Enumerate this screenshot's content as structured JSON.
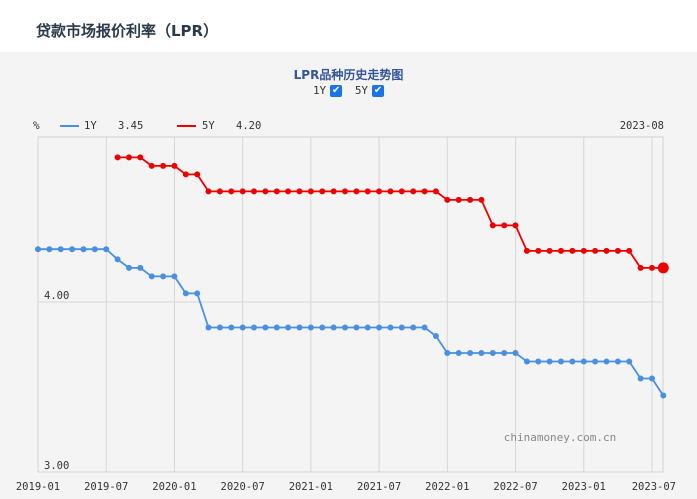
{
  "page": {
    "title": "贷款市场报价利率（LPR）"
  },
  "chart": {
    "title": "LPR品种历史走势图",
    "unit": "%",
    "current_period": "2023-08",
    "watermark": "chinamoney.com.cn",
    "toggles": [
      {
        "label": "1Y",
        "checked": true
      },
      {
        "label": "5Y",
        "checked": true
      }
    ]
  },
  "chart_data": {
    "type": "line",
    "ylim": [
      3.0,
      4.97
    ],
    "xlim": [
      "2019-01",
      "2023-08"
    ],
    "y_ticks": [
      {
        "value": 3.0,
        "label": "3.00"
      },
      {
        "value": 4.0,
        "label": "4.00"
      }
    ],
    "x_ticks": [
      "2019-01",
      "2019-07",
      "2020-01",
      "2020-07",
      "2021-01",
      "2021-07",
      "2022-01",
      "2022-07",
      "2023-01",
      "2023-07"
    ],
    "grid": true,
    "legend": "top-left",
    "series": [
      {
        "name": "1Y",
        "color": "#4a90e2",
        "latest": "3.45",
        "points": [
          [
            "2019-01",
            4.31
          ],
          [
            "2019-02",
            4.31
          ],
          [
            "2019-03",
            4.31
          ],
          [
            "2019-04",
            4.31
          ],
          [
            "2019-05",
            4.31
          ],
          [
            "2019-06",
            4.31
          ],
          [
            "2019-07",
            4.31
          ],
          [
            "2019-08",
            4.25
          ],
          [
            "2019-09",
            4.2
          ],
          [
            "2019-10",
            4.2
          ],
          [
            "2019-11",
            4.15
          ],
          [
            "2019-12",
            4.15
          ],
          [
            "2020-01",
            4.15
          ],
          [
            "2020-02",
            4.05
          ],
          [
            "2020-03",
            4.05
          ],
          [
            "2020-04",
            3.85
          ],
          [
            "2020-05",
            3.85
          ],
          [
            "2020-06",
            3.85
          ],
          [
            "2020-07",
            3.85
          ],
          [
            "2020-08",
            3.85
          ],
          [
            "2020-09",
            3.85
          ],
          [
            "2020-10",
            3.85
          ],
          [
            "2020-11",
            3.85
          ],
          [
            "2020-12",
            3.85
          ],
          [
            "2021-01",
            3.85
          ],
          [
            "2021-02",
            3.85
          ],
          [
            "2021-03",
            3.85
          ],
          [
            "2021-04",
            3.85
          ],
          [
            "2021-05",
            3.85
          ],
          [
            "2021-06",
            3.85
          ],
          [
            "2021-07",
            3.85
          ],
          [
            "2021-08",
            3.85
          ],
          [
            "2021-09",
            3.85
          ],
          [
            "2021-10",
            3.85
          ],
          [
            "2021-11",
            3.85
          ],
          [
            "2021-12",
            3.8
          ],
          [
            "2022-01",
            3.7
          ],
          [
            "2022-02",
            3.7
          ],
          [
            "2022-03",
            3.7
          ],
          [
            "2022-04",
            3.7
          ],
          [
            "2022-05",
            3.7
          ],
          [
            "2022-06",
            3.7
          ],
          [
            "2022-07",
            3.7
          ],
          [
            "2022-08",
            3.65
          ],
          [
            "2022-09",
            3.65
          ],
          [
            "2022-10",
            3.65
          ],
          [
            "2022-11",
            3.65
          ],
          [
            "2022-12",
            3.65
          ],
          [
            "2023-01",
            3.65
          ],
          [
            "2023-02",
            3.65
          ],
          [
            "2023-03",
            3.65
          ],
          [
            "2023-04",
            3.65
          ],
          [
            "2023-05",
            3.65
          ],
          [
            "2023-06",
            3.55
          ],
          [
            "2023-07",
            3.55
          ],
          [
            "2023-08",
            3.45
          ]
        ]
      },
      {
        "name": "5Y",
        "color": "#ee0000",
        "latest": "4.20",
        "points": [
          [
            "2019-08",
            4.85
          ],
          [
            "2019-09",
            4.85
          ],
          [
            "2019-10",
            4.85
          ],
          [
            "2019-11",
            4.8
          ],
          [
            "2019-12",
            4.8
          ],
          [
            "2020-01",
            4.8
          ],
          [
            "2020-02",
            4.75
          ],
          [
            "2020-03",
            4.75
          ],
          [
            "2020-04",
            4.65
          ],
          [
            "2020-05",
            4.65
          ],
          [
            "2020-06",
            4.65
          ],
          [
            "2020-07",
            4.65
          ],
          [
            "2020-08",
            4.65
          ],
          [
            "2020-09",
            4.65
          ],
          [
            "2020-10",
            4.65
          ],
          [
            "2020-11",
            4.65
          ],
          [
            "2020-12",
            4.65
          ],
          [
            "2021-01",
            4.65
          ],
          [
            "2021-02",
            4.65
          ],
          [
            "2021-03",
            4.65
          ],
          [
            "2021-04",
            4.65
          ],
          [
            "2021-05",
            4.65
          ],
          [
            "2021-06",
            4.65
          ],
          [
            "2021-07",
            4.65
          ],
          [
            "2021-08",
            4.65
          ],
          [
            "2021-09",
            4.65
          ],
          [
            "2021-10",
            4.65
          ],
          [
            "2021-11",
            4.65
          ],
          [
            "2021-12",
            4.65
          ],
          [
            "2022-01",
            4.6
          ],
          [
            "2022-02",
            4.6
          ],
          [
            "2022-03",
            4.6
          ],
          [
            "2022-04",
            4.6
          ],
          [
            "2022-05",
            4.45
          ],
          [
            "2022-06",
            4.45
          ],
          [
            "2022-07",
            4.45
          ],
          [
            "2022-08",
            4.3
          ],
          [
            "2022-09",
            4.3
          ],
          [
            "2022-10",
            4.3
          ],
          [
            "2022-11",
            4.3
          ],
          [
            "2022-12",
            4.3
          ],
          [
            "2023-01",
            4.3
          ],
          [
            "2023-02",
            4.3
          ],
          [
            "2023-03",
            4.3
          ],
          [
            "2023-04",
            4.3
          ],
          [
            "2023-05",
            4.3
          ],
          [
            "2023-06",
            4.2
          ],
          [
            "2023-07",
            4.2
          ],
          [
            "2023-08",
            4.2
          ]
        ]
      }
    ]
  }
}
